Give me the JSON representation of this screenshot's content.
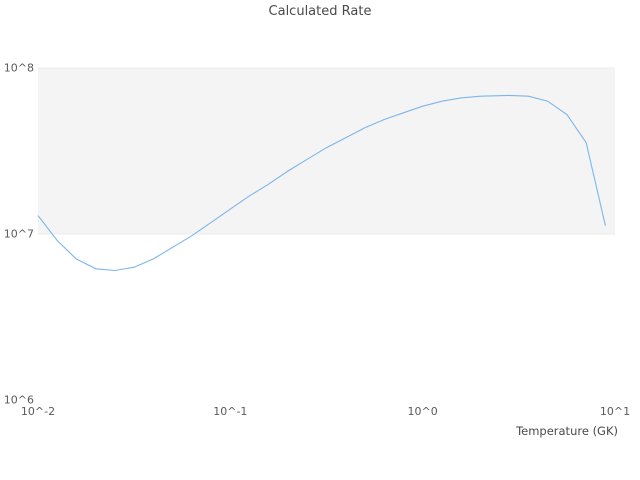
{
  "chart": {
    "title": "Calculated Rate",
    "xlabel": "Temperature (GK)",
    "y_ticks": [
      {
        "label": "10^8",
        "value": 100000000
      },
      {
        "label": "10^7",
        "value": 10000000
      },
      {
        "label": "10^6",
        "value": 1000000
      }
    ],
    "x_ticks": [
      {
        "label": "10^-2",
        "value": 0.01
      },
      {
        "label": "10^-1",
        "value": 0.1
      },
      {
        "label": "10^0",
        "value": 1
      },
      {
        "label": "10^1",
        "value": 10
      }
    ]
  },
  "chart_data": {
    "type": "line",
    "title": "Calculated Rate",
    "xlabel": "Temperature (GK)",
    "ylabel": "",
    "x_scale": "log",
    "y_scale": "log",
    "xlim": [
      0.01,
      10
    ],
    "ylim": [
      1000000,
      100000000
    ],
    "grid": false,
    "legend": "none",
    "line_color": "#7cb5ec",
    "band": {
      "y_from": 10000000,
      "y_to": 100000000,
      "color": "#f4f4f4"
    },
    "x": [
      0.01,
      0.0126,
      0.0158,
      0.02,
      0.0251,
      0.0316,
      0.0398,
      0.0501,
      0.0631,
      0.0794,
      0.1,
      0.126,
      0.158,
      0.2,
      0.251,
      0.316,
      0.398,
      0.501,
      0.631,
      0.794,
      1.0,
      1.26,
      1.58,
      2.0,
      2.82,
      3.55,
      4.47,
      5.62,
      7.08,
      8.91
    ],
    "y": [
      12900000,
      9120000,
      7080000,
      6170000,
      6030000,
      6310000,
      7080000,
      8320000,
      9770000,
      11750000,
      14130000,
      16980000,
      19950000,
      23990000,
      28180000,
      33110000,
      38020000,
      43650000,
      48980000,
      53700000,
      58880000,
      63100000,
      66070000,
      67610000,
      68390000,
      67610000,
      63100000,
      52480000,
      35480000,
      11220000
    ]
  }
}
